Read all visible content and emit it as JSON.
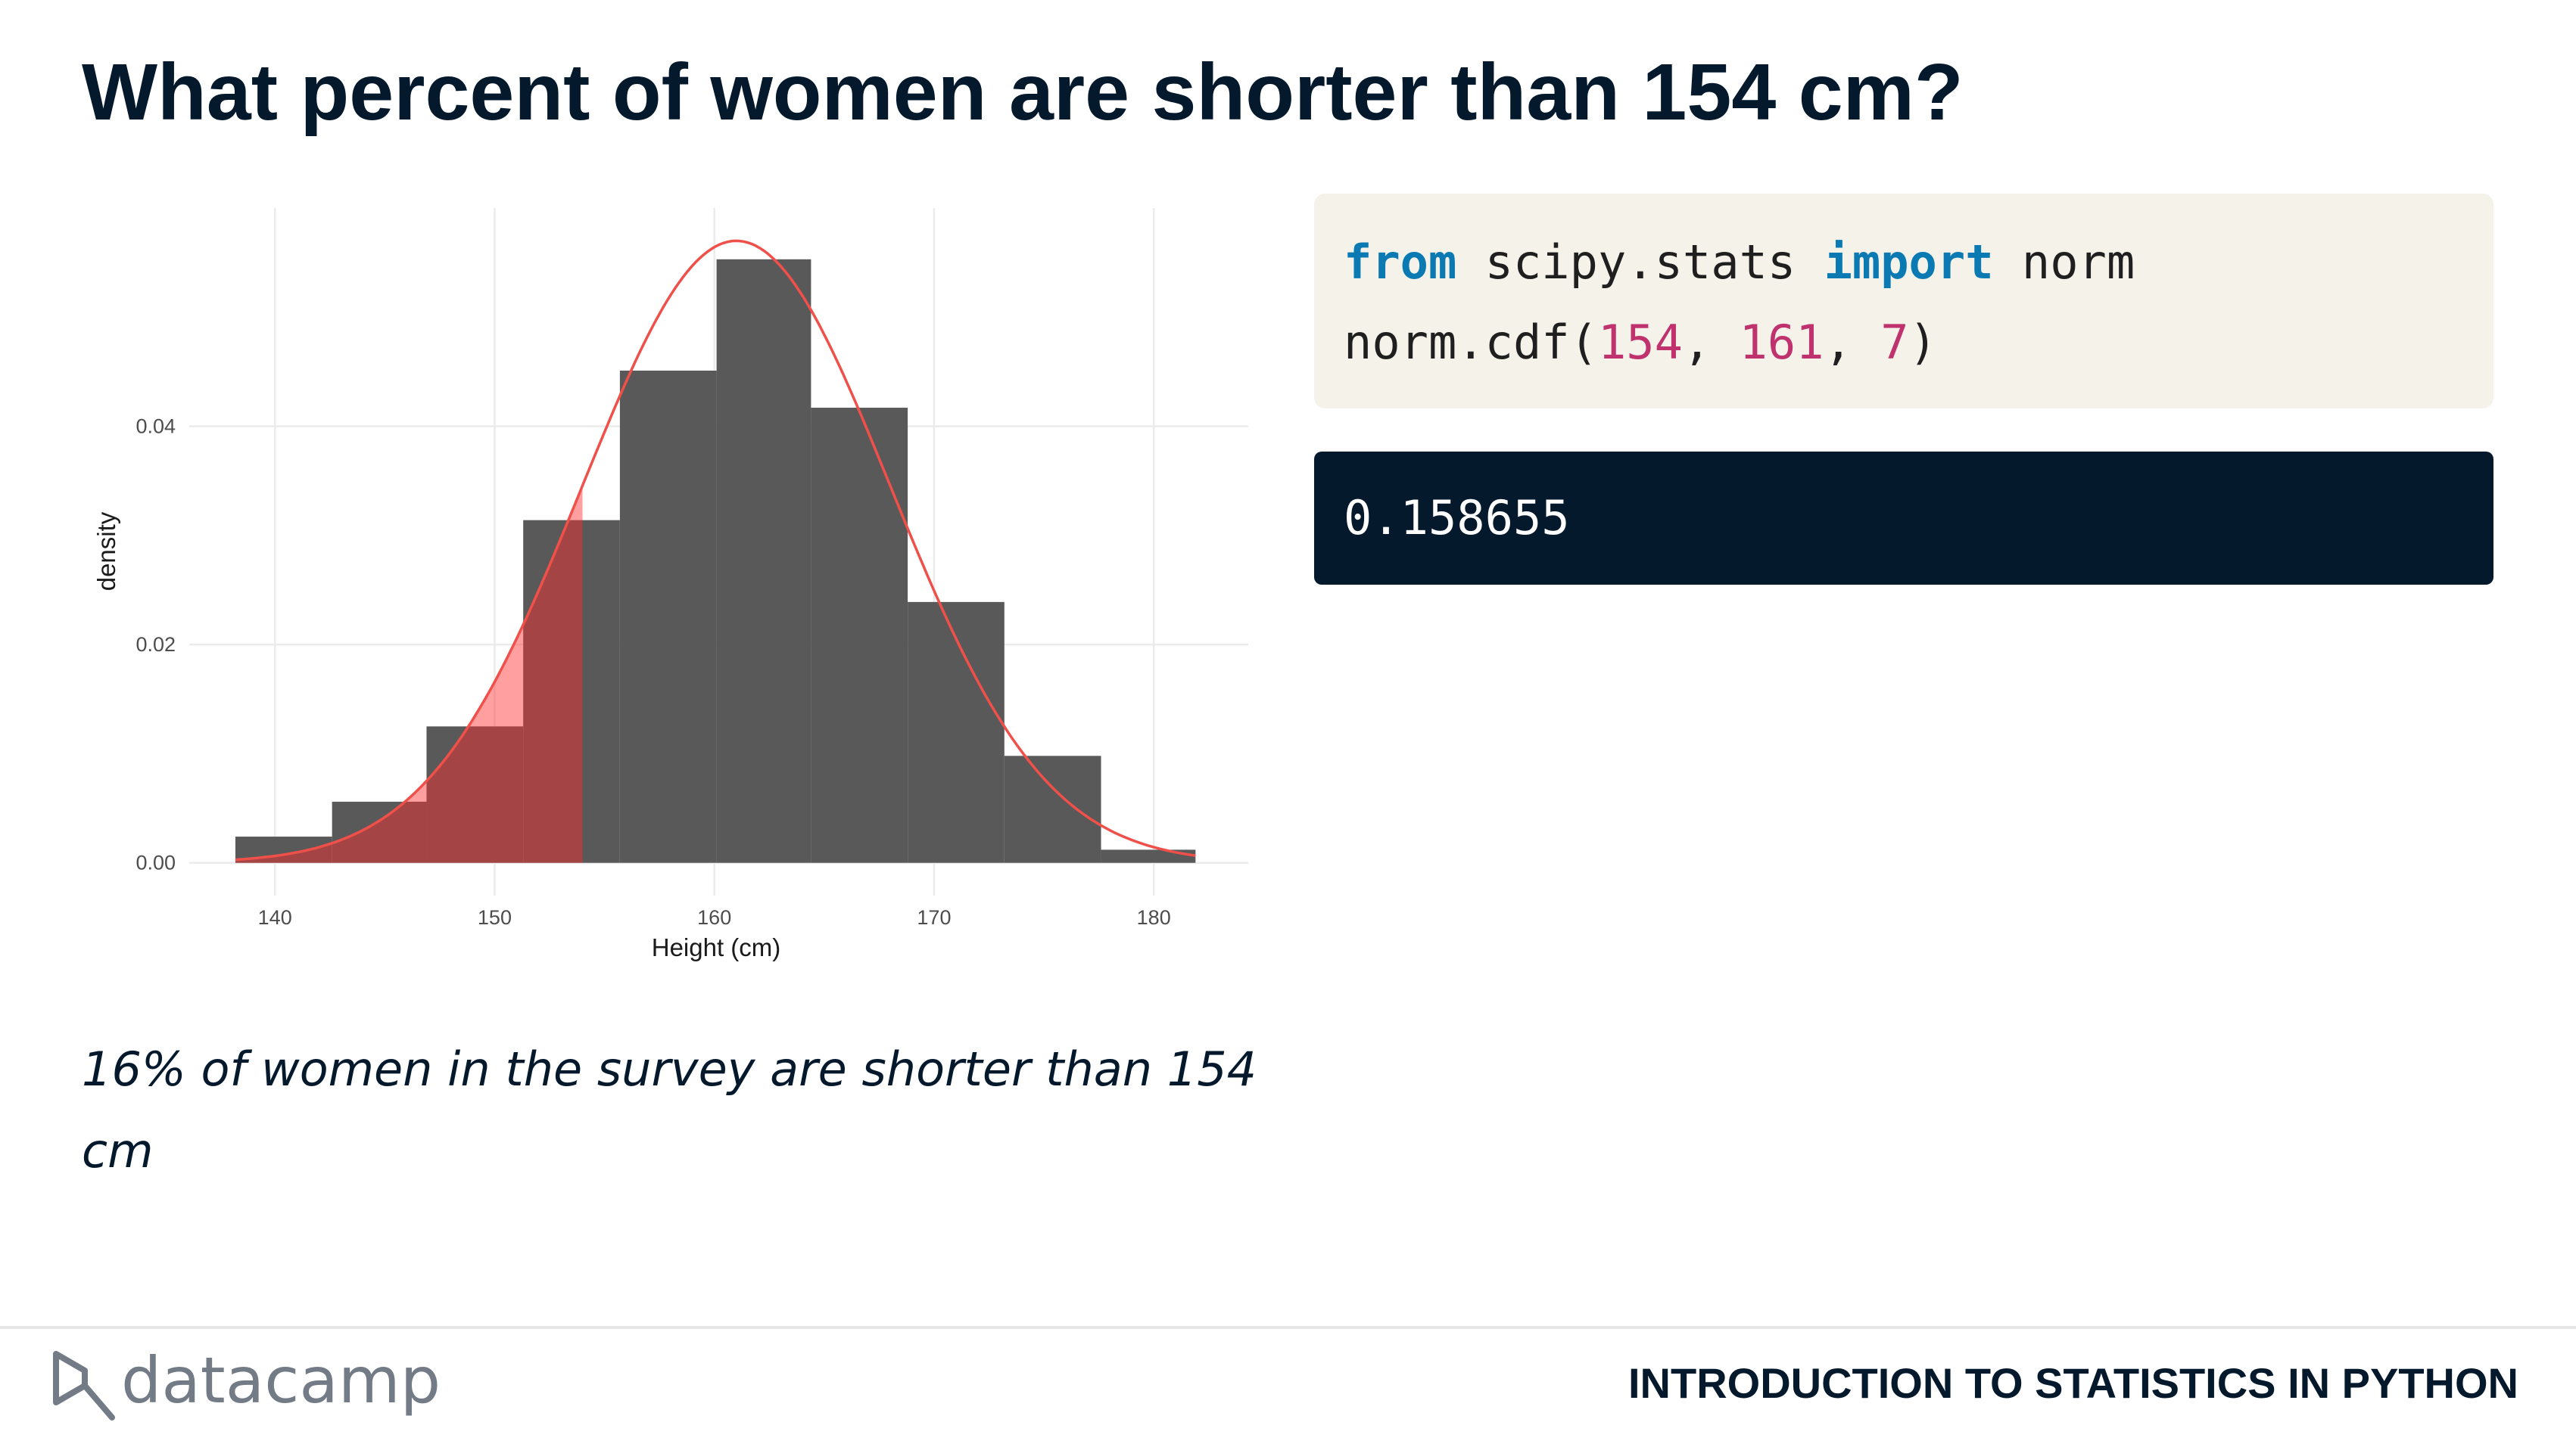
{
  "title": "What percent of women are shorter than 154 cm?",
  "chart_data": {
    "type": "histogram",
    "xlabel": "Height (cm)",
    "ylabel": "density",
    "bins": [
      138.2,
      142.6,
      146.9,
      151.3,
      155.7,
      160.1,
      164.4,
      168.8,
      173.2,
      177.6,
      181.9
    ],
    "values": [
      0.0024,
      0.0056,
      0.0125,
      0.0314,
      0.0451,
      0.0553,
      0.0417,
      0.0239,
      0.0098,
      0.0012
    ],
    "color": "#595959",
    "curve": {
      "mean": 161,
      "sd": 7,
      "color": "#f0504a",
      "shade_below": 154,
      "shade_color": "#ff2a2a"
    },
    "xlim": [
      136.1,
      184.3
    ],
    "ylim": [
      -0.003,
      0.06
    ],
    "xticks": [
      140,
      150,
      160,
      170,
      180
    ],
    "yticks": [
      {
        "value": 0,
        "label": "0.00"
      },
      {
        "value": 0.02,
        "label": "0.02"
      },
      {
        "value": 0.04,
        "label": "0.04"
      }
    ],
    "grid": true
  },
  "code": {
    "lines": [
      [
        {
          "text": "from",
          "kind": "keyword"
        },
        {
          "text": " scipy.stats ",
          "kind": "plain"
        },
        {
          "text": "import",
          "kind": "keyword"
        },
        {
          "text": " norm",
          "kind": "plain"
        }
      ],
      [
        {
          "text": "norm.cdf(",
          "kind": "plain"
        },
        {
          "text": "154",
          "kind": "number"
        },
        {
          "text": ", ",
          "kind": "plain"
        },
        {
          "text": "161",
          "kind": "number"
        },
        {
          "text": ", ",
          "kind": "plain"
        },
        {
          "text": "7",
          "kind": "number"
        },
        {
          "text": ")",
          "kind": "plain"
        }
      ]
    ]
  },
  "output": "0.158655",
  "caption": "16% of women in the survey are shorter than 154 cm",
  "footer": {
    "brand": "datacamp",
    "course": "INTRODUCTION TO STATISTICS IN PYTHON"
  }
}
